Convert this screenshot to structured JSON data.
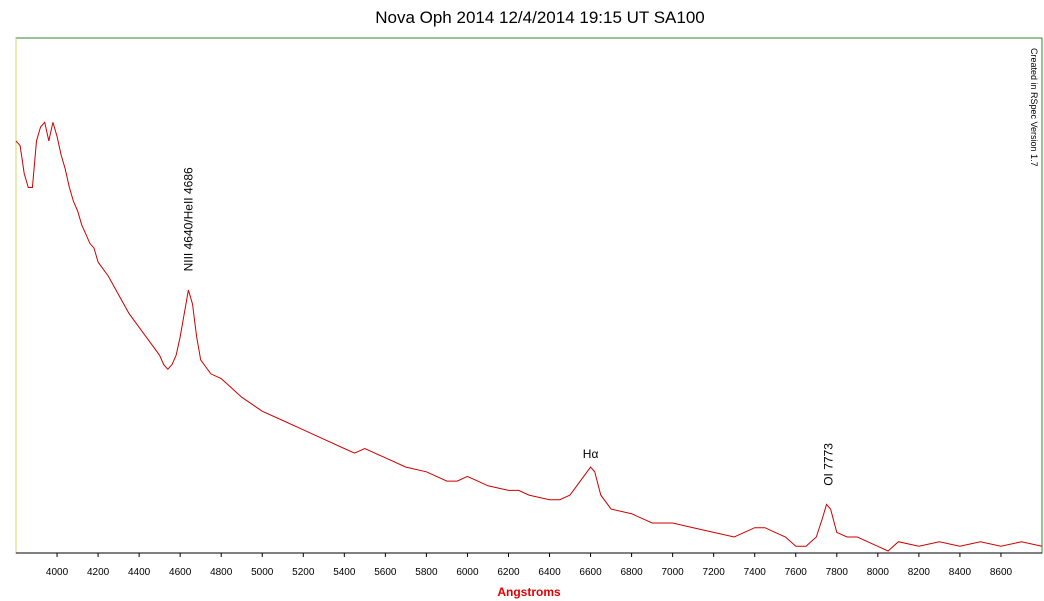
{
  "chart_data": {
    "type": "line",
    "title": "Nova Oph 2014 12/4/2014 19:15 UT SA100",
    "xlabel": "Angstroms",
    "ylabel": "",
    "xlim": [
      3800,
      8800
    ],
    "ylim": [
      0,
      1
    ],
    "x_ticks": [
      4000,
      4200,
      4400,
      4600,
      4800,
      5000,
      5200,
      5400,
      5600,
      5800,
      6000,
      6200,
      6400,
      6600,
      6800,
      7000,
      7200,
      7400,
      7600,
      7800,
      8000,
      8200,
      8400,
      8600
    ],
    "grid": false,
    "colors": {
      "line": "#cc0000",
      "frame": "#2e8b2e",
      "xlabel": "#e00000",
      "axis": "#000000"
    },
    "series": [
      {
        "x": [
          3800,
          3820,
          3840,
          3860,
          3880,
          3900,
          3920,
          3940,
          3960,
          3980,
          4000,
          4020,
          4040,
          4060,
          4080,
          4100,
          4120,
          4140,
          4160,
          4180,
          4200,
          4250,
          4300,
          4350,
          4400,
          4450,
          4500,
          4520,
          4540,
          4560,
          4580,
          4600,
          4620,
          4640,
          4660,
          4680,
          4700,
          4750,
          4800,
          4850,
          4900,
          5000,
          5100,
          5200,
          5300,
          5400,
          5450,
          5500,
          5600,
          5700,
          5800,
          5900,
          5950,
          6000,
          6050,
          6100,
          6200,
          6250,
          6300,
          6400,
          6450,
          6500,
          6550,
          6600,
          6620,
          6650,
          6700,
          6800,
          6900,
          7000,
          7100,
          7200,
          7300,
          7400,
          7450,
          7500,
          7550,
          7600,
          7650,
          7700,
          7730,
          7750,
          7770,
          7800,
          7850,
          7900,
          7950,
          8000,
          8050,
          8100,
          8200,
          8300,
          8400,
          8500,
          8600,
          8700,
          8800
        ],
        "y": [
          0.88,
          0.87,
          0.81,
          0.78,
          0.78,
          0.88,
          0.91,
          0.92,
          0.88,
          0.92,
          0.89,
          0.85,
          0.82,
          0.78,
          0.75,
          0.73,
          0.7,
          0.68,
          0.66,
          0.65,
          0.62,
          0.59,
          0.55,
          0.51,
          0.48,
          0.45,
          0.42,
          0.4,
          0.39,
          0.4,
          0.42,
          0.46,
          0.51,
          0.56,
          0.53,
          0.46,
          0.41,
          0.38,
          0.37,
          0.35,
          0.33,
          0.3,
          0.28,
          0.26,
          0.24,
          0.22,
          0.21,
          0.22,
          0.2,
          0.18,
          0.17,
          0.15,
          0.15,
          0.16,
          0.15,
          0.14,
          0.13,
          0.13,
          0.12,
          0.11,
          0.11,
          0.12,
          0.15,
          0.18,
          0.17,
          0.12,
          0.09,
          0.08,
          0.06,
          0.06,
          0.05,
          0.04,
          0.03,
          0.05,
          0.05,
          0.04,
          0.03,
          0.01,
          0.01,
          0.03,
          0.07,
          0.1,
          0.09,
          0.04,
          0.03,
          0.03,
          0.02,
          0.01,
          0.0,
          0.02,
          0.01,
          0.02,
          0.01,
          0.02,
          0.01,
          0.02,
          0.01
        ]
      }
    ],
    "annotations": [
      {
        "text": "NIII 4640/HeII 4686",
        "x": 4640,
        "y": 0.6,
        "rotate": true
      },
      {
        "text": "Hα",
        "x": 6600,
        "y": 0.2,
        "rotate": false
      },
      {
        "text": "OI 7773",
        "x": 7760,
        "y": 0.14,
        "rotate": true
      }
    ],
    "watermark": "Created in RSpec Version 1.7"
  }
}
